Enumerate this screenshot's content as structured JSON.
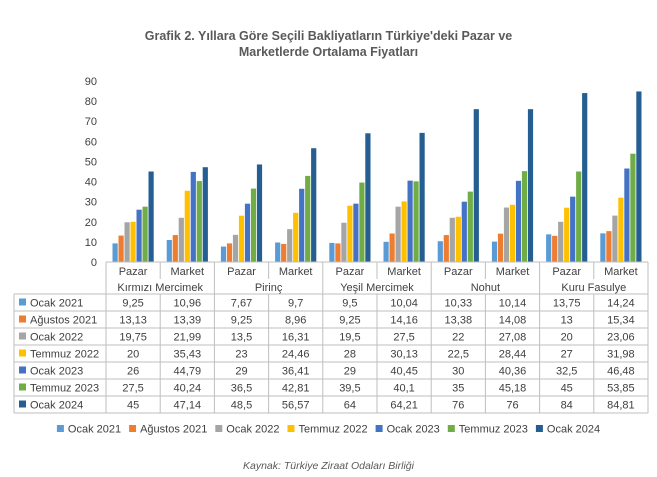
{
  "title_line1": "Grafik 2. Yıllara Göre Seçili Bakliyatların Türkiye'deki Pazar ve",
  "title_line2": "Marketlerde Ortalama Fiyatları",
  "source": "Kaynak: Türkiye Ziraat Odaları Birliği",
  "chart_data": {
    "type": "bar",
    "title": "Grafik 2. Yıllara Göre Seçili Bakliyatların Türkiye'deki Pazar ve Marketlerde Ortalama Fiyatları",
    "ylim": [
      0,
      90
    ],
    "yticks": [
      0,
      10,
      20,
      30,
      40,
      50,
      60,
      70,
      80,
      90
    ],
    "grid": false,
    "legend": "bottom",
    "groups": [
      "Kırmızı Mercimek",
      "Pirinç",
      "Yeşil Mercimek",
      "Nohut",
      "Kuru Fasulye"
    ],
    "categories": [
      "Pazar",
      "Market",
      "Pazar",
      "Market",
      "Pazar",
      "Market",
      "Pazar",
      "Market",
      "Pazar",
      "Market"
    ],
    "series": [
      {
        "name": "Ocak 2021",
        "color": "#5b9bd5",
        "values": [
          9.25,
          10.96,
          7.67,
          9.7,
          9.5,
          10.04,
          10.33,
          10.14,
          13.75,
          14.24
        ],
        "labels": [
          "9,25",
          "10,96",
          "7,67",
          "9,7",
          "9,5",
          "10,04",
          "10,33",
          "10,14",
          "13,75",
          "14,24"
        ]
      },
      {
        "name": "Ağustos 2021",
        "color": "#ed7d31",
        "values": [
          13.13,
          13.39,
          9.25,
          8.96,
          9.25,
          14.16,
          13.38,
          14.08,
          13,
          15.34
        ],
        "labels": [
          "13,13",
          "13,39",
          "9,25",
          "8,96",
          "9,25",
          "14,16",
          "13,38",
          "14,08",
          "13",
          "15,34"
        ]
      },
      {
        "name": "Ocak 2022",
        "color": "#a5a5a5",
        "values": [
          19.75,
          21.99,
          13.5,
          16.31,
          19.5,
          27.5,
          22,
          27.08,
          20,
          23.06
        ],
        "labels": [
          "19,75",
          "21,99",
          "13,5",
          "16,31",
          "19,5",
          "27,5",
          "22",
          "27,08",
          "20",
          "23,06"
        ]
      },
      {
        "name": "Temmuz 2022",
        "color": "#ffc000",
        "values": [
          20,
          35.43,
          23,
          24.46,
          28,
          30.13,
          22.5,
          28.44,
          27,
          31.98
        ],
        "labels": [
          "20",
          "35,43",
          "23",
          "24,46",
          "28",
          "30,13",
          "22,5",
          "28,44",
          "27",
          "31,98"
        ]
      },
      {
        "name": "Ocak 2023",
        "color": "#4472c4",
        "values": [
          26,
          44.79,
          29,
          36.41,
          29,
          40.45,
          30,
          40.36,
          32.5,
          46.48
        ],
        "labels": [
          "26",
          "44,79",
          "29",
          "36,41",
          "29",
          "40,45",
          "30",
          "40,36",
          "32,5",
          "46,48"
        ]
      },
      {
        "name": "Temmuz 2023",
        "color": "#70ad47",
        "values": [
          27.5,
          40.24,
          36.5,
          42.81,
          39.5,
          40.1,
          35,
          45.18,
          45,
          53.85
        ],
        "labels": [
          "27,5",
          "40,24",
          "36,5",
          "42,81",
          "39,5",
          "40,1",
          "35",
          "45,18",
          "45",
          "53,85"
        ]
      },
      {
        "name": "Ocak 2024",
        "color": "#255e91",
        "values": [
          45,
          47.14,
          48.5,
          56.57,
          64,
          64.21,
          76,
          76,
          84,
          84.81
        ],
        "labels": [
          "45",
          "47,14",
          "48,5",
          "56,57",
          "64",
          "64,21",
          "76",
          "76",
          "84",
          "84,81"
        ]
      }
    ]
  }
}
